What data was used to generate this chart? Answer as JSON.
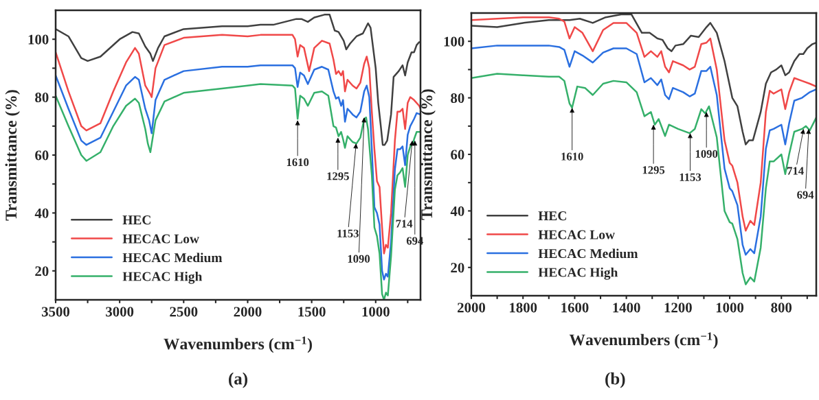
{
  "chart_data": [
    {
      "type": "line",
      "xlabel": "Wavenumbers (cm$^{−1}$)",
      "ylabel": "Transmittance (%)",
      "xlim": [
        3500,
        650
      ],
      "ylim": [
        10,
        110
      ],
      "xticks": [
        3500,
        {
          "value": 3250,
          "label": null
        },
        3000,
        {
          "value": 2750,
          "label": null
        },
        2500,
        {
          "value": 2250,
          "label": null
        },
        2000,
        {
          "value": 1750,
          "label": null
        },
        1500,
        {
          "value": 1250,
          "label": null
        },
        1000,
        {
          "value": 750,
          "label": null
        }
      ],
      "yticks": [
        20,
        {
          "value": 30,
          "label": null
        },
        40,
        {
          "value": 50,
          "label": null
        },
        60,
        {
          "value": 70,
          "label": null
        },
        80,
        {
          "value": 90,
          "label": null
        },
        100
      ],
      "legend": "bottom left",
      "grid": false,
      "marker": "none",
      "line_style": "solid",
      "annotations": [
        {
          "text": "1610",
          "x": 1610,
          "y": 72
        },
        {
          "text": "1295",
          "x": 1295,
          "y": 66
        },
        {
          "text": "1153",
          "x": 1153,
          "y": 64
        },
        {
          "text": "1090",
          "x": 1090,
          "y": 73
        },
        {
          "text": "714",
          "x": 714,
          "y": 65
        },
        {
          "text": "694",
          "x": 694,
          "y": 65
        },
        "(a)"
      ],
      "series": [
        {
          "name": "HEC",
          "color": "#404040",
          "x": [
            3500,
            3400,
            3300,
            3250,
            3150,
            3000,
            2900,
            2850,
            2800,
            2760,
            2740,
            2700,
            2650,
            2500,
            2200,
            2000,
            1900,
            1800,
            1620,
            1580,
            1530,
            1480,
            1400,
            1360,
            1320,
            1290,
            1250,
            1230,
            1200,
            1150,
            1100,
            1060,
            1040,
            1000,
            980,
            960,
            945,
            930,
            910,
            880,
            860,
            820,
            790,
            770,
            750,
            720,
            700,
            680,
            660
          ],
          "values": [
            103.5,
            101,
            93.5,
            92.5,
            94,
            100,
            102.5,
            102,
            97.5,
            95,
            92.5,
            97,
            101,
            103.5,
            104.5,
            104.5,
            105,
            105,
            107,
            107,
            106,
            107.5,
            108.5,
            108.5,
            103,
            102.5,
            99.5,
            96.5,
            98.5,
            101,
            102,
            105.5,
            104,
            90,
            78,
            70,
            63.5,
            63.5,
            65,
            74,
            87,
            89,
            91,
            87.5,
            92,
            95.5,
            95.5,
            98,
            99
          ]
        },
        {
          "name": "HECAC Low",
          "color": "#f04848",
          "x": [
            3500,
            3400,
            3300,
            3260,
            3150,
            3050,
            2950,
            2880,
            2850,
            2800,
            2760,
            2750,
            2720,
            2650,
            2500,
            2200,
            2000,
            1900,
            1650,
            1630,
            1610,
            1590,
            1560,
            1520,
            1480,
            1420,
            1360,
            1330,
            1310,
            1290,
            1270,
            1255,
            1240,
            1220,
            1180,
            1150,
            1120,
            1090,
            1070,
            1050,
            1030,
            1010,
            990,
            970,
            950,
            935,
            920,
            905,
            880,
            850,
            830,
            810,
            790,
            770,
            750,
            730,
            700,
            660,
            650
          ],
          "values": [
            95.5,
            82,
            70,
            68.5,
            71,
            82,
            92,
            97,
            95,
            84,
            81,
            80,
            90,
            98,
            100.5,
            101.5,
            101,
            101.5,
            101.5,
            100,
            94,
            98,
            97,
            89,
            97,
            99.5,
            98.5,
            93,
            88,
            89,
            87.5,
            89,
            82,
            86,
            84,
            83,
            85,
            91.5,
            94,
            90,
            75,
            62,
            51,
            49,
            35,
            26,
            29,
            28,
            40,
            65,
            75,
            75,
            76,
            69,
            78,
            80,
            79,
            77,
            76
          ]
        },
        {
          "name": "HECAC Medium",
          "color": "#2a6fe0",
          "x": [
            3500,
            3400,
            3300,
            3260,
            3150,
            3050,
            2950,
            2880,
            2850,
            2800,
            2770,
            2750,
            2720,
            2650,
            2500,
            2200,
            2000,
            1900,
            1650,
            1630,
            1610,
            1590,
            1560,
            1530,
            1480,
            1420,
            1370,
            1330,
            1310,
            1290,
            1270,
            1255,
            1240,
            1220,
            1180,
            1150,
            1120,
            1090,
            1070,
            1050,
            1030,
            1010,
            990,
            970,
            950,
            935,
            920,
            905,
            880,
            850,
            830,
            810,
            790,
            770,
            750,
            730,
            700,
            680,
            650
          ],
          "values": [
            87.5,
            76,
            65,
            63.5,
            66,
            75,
            84,
            87,
            86,
            76,
            72,
            67.5,
            79,
            86,
            89,
            90.5,
            90.5,
            91,
            91,
            90,
            83.5,
            88.5,
            87.5,
            84.5,
            89.5,
            90.5,
            89.5,
            82,
            79.5,
            80,
            77,
            79,
            71.5,
            76,
            74,
            73,
            75,
            82,
            84,
            80,
            62,
            42,
            40,
            36,
            20,
            17,
            19,
            18,
            30,
            55,
            62,
            62,
            63,
            56.5,
            67,
            70,
            72.5,
            74.5,
            74
          ]
        },
        {
          "name": "HECAC High",
          "color": "#35b06a",
          "x": [
            3500,
            3400,
            3300,
            3260,
            3150,
            3050,
            2950,
            2880,
            2850,
            2800,
            2780,
            2760,
            2720,
            2650,
            2500,
            2200,
            2000,
            1900,
            1650,
            1630,
            1610,
            1590,
            1560,
            1530,
            1480,
            1420,
            1370,
            1330,
            1310,
            1290,
            1270,
            1255,
            1240,
            1220,
            1180,
            1150,
            1120,
            1090,
            1075,
            1060,
            1030,
            1010,
            990,
            970,
            950,
            935,
            920,
            905,
            880,
            850,
            830,
            810,
            790,
            770,
            750,
            730,
            710,
            700,
            680,
            650
          ],
          "values": [
            80.5,
            70,
            60,
            58,
            61,
            70,
            77,
            79.5,
            78,
            69,
            64,
            61,
            72,
            78.5,
            81.5,
            83,
            84,
            84.5,
            84,
            83,
            72.5,
            80.5,
            79.5,
            77,
            81.5,
            82,
            80.5,
            70,
            69.5,
            66.5,
            68,
            65.5,
            62.5,
            66.5,
            64.5,
            64,
            66,
            72.5,
            73,
            69,
            53,
            35,
            32,
            26,
            12,
            10,
            12.5,
            11.5,
            25,
            48,
            53,
            54,
            55.5,
            49,
            60,
            63,
            64,
            65.5,
            68,
            68
          ]
        }
      ]
    },
    {
      "type": "line",
      "xlabel": "Wavenumbers (cm$^{−1}$)",
      "ylabel": "Transmittance (%)",
      "xlim": [
        2000,
        665
      ],
      "ylim": [
        10,
        110
      ],
      "xticks": [
        2000,
        {
          "value": 1900,
          "label": null
        },
        1800,
        {
          "value": 1700,
          "label": null
        },
        1600,
        {
          "value": 1500,
          "label": null
        },
        1400,
        {
          "value": 1300,
          "label": null
        },
        1200,
        {
          "value": 1100,
          "label": null
        },
        1000,
        {
          "value": 900,
          "label": null
        },
        800,
        {
          "value": 700,
          "label": null
        }
      ],
      "yticks": [
        20,
        {
          "value": 30,
          "label": null
        },
        40,
        {
          "value": 50,
          "label": null
        },
        60,
        {
          "value": 70,
          "label": null
        },
        80,
        {
          "value": 90,
          "label": null
        },
        100
      ],
      "legend": "bottom left",
      "grid": false,
      "marker": "none",
      "line_style": "solid",
      "annotations": [
        {
          "text": "1610",
          "x": 1610,
          "y": 76.5
        },
        {
          "text": "1295",
          "x": 1295,
          "y": 70.5
        },
        {
          "text": "1153",
          "x": 1153,
          "y": 67.5
        },
        {
          "text": "1090",
          "x": 1090,
          "y": 75
        },
        {
          "text": "714",
          "x": 714,
          "y": 69
        },
        {
          "text": "694",
          "x": 694,
          "y": 69
        },
        "(b)"
      ],
      "series": [
        {
          "name": "HEC",
          "color": "#404040",
          "x": [
            2000,
            1900,
            1800,
            1700,
            1620,
            1580,
            1530,
            1480,
            1420,
            1380,
            1340,
            1310,
            1280,
            1260,
            1240,
            1225,
            1210,
            1180,
            1150,
            1120,
            1090,
            1075,
            1050,
            1020,
            990,
            970,
            950,
            938,
            925,
            910,
            880,
            860,
            840,
            820,
            800,
            785,
            770,
            750,
            730,
            715,
            700,
            680,
            665
          ],
          "values": [
            105.5,
            105,
            106.5,
            107.5,
            107.5,
            108,
            106.5,
            108.5,
            109.5,
            109.5,
            103,
            103,
            101,
            100.5,
            97.5,
            96.5,
            98.5,
            99,
            102,
            101.5,
            105,
            106.5,
            103,
            93,
            80,
            77,
            68,
            63.5,
            65,
            65,
            75,
            85,
            89,
            90,
            91.5,
            88,
            89,
            93,
            95.5,
            95.5,
            97.5,
            99,
            99.5
          ]
        },
        {
          "name": "HECAC Low",
          "color": "#f04848",
          "x": [
            2000,
            1800,
            1700,
            1660,
            1640,
            1620,
            1600,
            1570,
            1530,
            1490,
            1450,
            1400,
            1360,
            1330,
            1305,
            1280,
            1265,
            1250,
            1235,
            1220,
            1180,
            1155,
            1135,
            1110,
            1090,
            1075,
            1050,
            1020,
            1000,
            990,
            970,
            950,
            938,
            920,
            905,
            880,
            860,
            845,
            830,
            800,
            785,
            770,
            750,
            720,
            690,
            665
          ],
          "values": [
            107.5,
            108.5,
            108.5,
            108,
            107,
            101,
            105,
            103,
            96.5,
            104,
            106.5,
            106.5,
            103,
            94.5,
            96.5,
            94.5,
            96.5,
            91,
            89,
            93,
            91.5,
            90,
            91,
            99,
            99.5,
            101,
            90,
            65,
            57,
            56,
            50,
            38,
            33,
            36.5,
            35,
            50,
            75,
            82.5,
            81.5,
            83,
            76,
            82,
            87,
            86,
            85,
            84
          ]
        },
        {
          "name": "HECAC Medium",
          "color": "#2a6fe0",
          "x": [
            2000,
            1900,
            1700,
            1660,
            1640,
            1620,
            1600,
            1570,
            1530,
            1490,
            1450,
            1400,
            1360,
            1330,
            1305,
            1280,
            1265,
            1250,
            1235,
            1220,
            1180,
            1155,
            1135,
            1110,
            1090,
            1075,
            1050,
            1020,
            1000,
            990,
            970,
            950,
            938,
            920,
            905,
            880,
            860,
            845,
            830,
            800,
            785,
            770,
            750,
            720,
            690,
            665
          ],
          "values": [
            97.5,
            98.5,
            98.5,
            98,
            97,
            91,
            96.5,
            95,
            92.5,
            96,
            97.5,
            97.5,
            95.5,
            85.5,
            87,
            84.5,
            86.5,
            81,
            79.5,
            83.5,
            82,
            80.5,
            81.5,
            89.5,
            89.5,
            91,
            81,
            55,
            48,
            47,
            42,
            28,
            24.5,
            26.5,
            25,
            38,
            62,
            68.5,
            69,
            70.5,
            63.5,
            71,
            79,
            80,
            82,
            83
          ]
        },
        {
          "name": "HECAC High",
          "color": "#35b06a",
          "x": [
            2000,
            1900,
            1800,
            1700,
            1660,
            1640,
            1620,
            1610,
            1590,
            1560,
            1530,
            1490,
            1450,
            1400,
            1360,
            1330,
            1305,
            1290,
            1275,
            1250,
            1235,
            1200,
            1155,
            1135,
            1110,
            1095,
            1080,
            1050,
            1020,
            1000,
            990,
            970,
            950,
            938,
            920,
            905,
            880,
            860,
            845,
            830,
            800,
            785,
            770,
            750,
            720,
            705,
            690,
            665
          ],
          "values": [
            87,
            88.5,
            88,
            87.5,
            87.5,
            86,
            78,
            76.5,
            84,
            83.5,
            81,
            85,
            86,
            85.5,
            82,
            73.5,
            75,
            70.5,
            72.5,
            66.5,
            70.5,
            69,
            67.5,
            69,
            76,
            74.5,
            77,
            66,
            40,
            36,
            35.5,
            30,
            18,
            14,
            16.5,
            15,
            27,
            48,
            57.5,
            57.5,
            60,
            53,
            60,
            68,
            69,
            70,
            68.5,
            73
          ]
        }
      ]
    }
  ]
}
